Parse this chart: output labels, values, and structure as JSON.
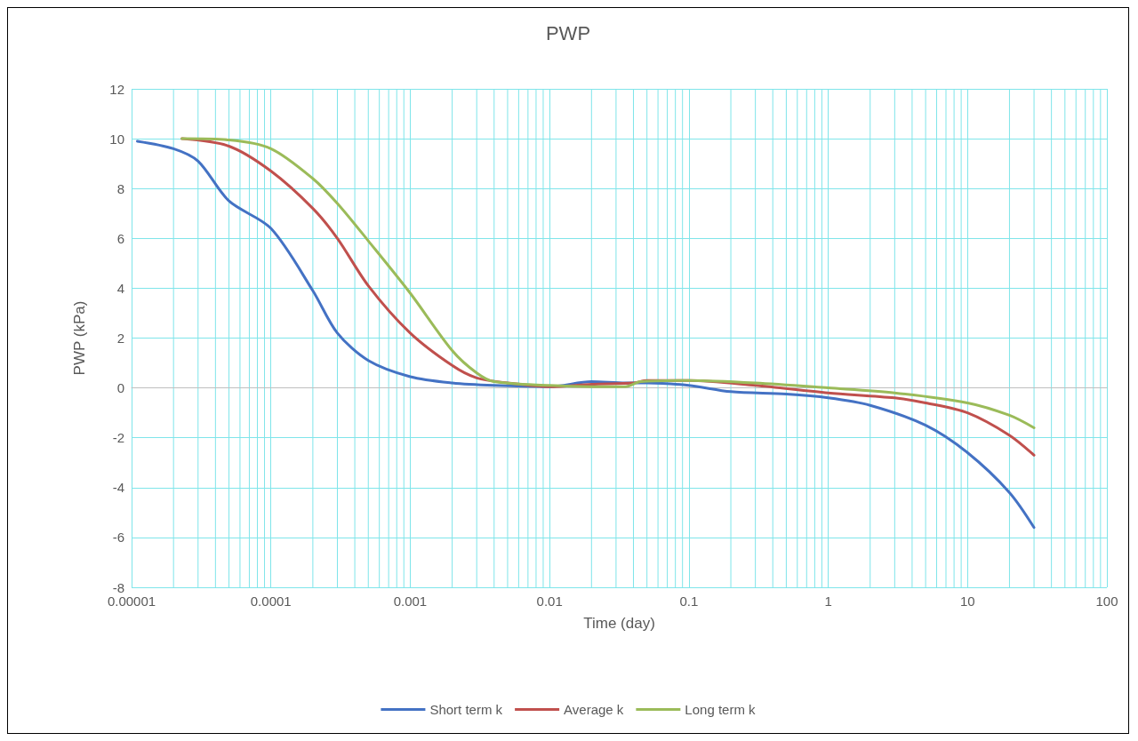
{
  "chart_data": {
    "type": "line",
    "title": "PWP",
    "xlabel": "Time (day)",
    "ylabel": "PWP (kPa)",
    "log": "x",
    "grid": true,
    "legend": "bottom",
    "marker": "none",
    "line_style": "solid",
    "xlim": [
      1e-05,
      100
    ],
    "xticks": [
      {
        "value": 1e-05,
        "label": "0.00001"
      },
      0.0001,
      0.001,
      0.01,
      0.1,
      1,
      10,
      100
    ],
    "ylim": [
      -8,
      12
    ],
    "yticks": [
      -8,
      -6,
      -4,
      -2,
      0,
      2,
      4,
      6,
      8,
      10,
      12
    ],
    "series": [
      {
        "name": "Short term k",
        "color": "#4472c4",
        "x": [
          1.1e-05,
          2e-05,
          3e-05,
          5e-05,
          0.0001,
          0.0002,
          0.0003,
          0.0005,
          0.001,
          0.002,
          0.004,
          0.01,
          0.02,
          0.035,
          0.05,
          0.1,
          0.2,
          0.5,
          1,
          2,
          5,
          10,
          20,
          30
        ],
        "values": [
          9.9,
          9.6,
          9.1,
          7.5,
          6.4,
          3.9,
          2.2,
          1.1,
          0.45,
          0.2,
          0.1,
          0.05,
          0.25,
          0.2,
          0.2,
          0.1,
          -0.15,
          -0.25,
          -0.4,
          -0.7,
          -1.5,
          -2.6,
          -4.2,
          -5.6
        ]
      },
      {
        "name": "Average k",
        "color": "#c0504d",
        "x": [
          2.3e-05,
          5e-05,
          0.0001,
          0.0002,
          0.0003,
          0.0005,
          0.001,
          0.002,
          0.003,
          0.005,
          0.01,
          0.02,
          0.04,
          0.05,
          0.1,
          0.3,
          1,
          3,
          5,
          10,
          20,
          30
        ],
        "values": [
          10.0,
          9.7,
          8.7,
          7.2,
          6.0,
          4.1,
          2.2,
          0.9,
          0.4,
          0.2,
          0.05,
          0.15,
          0.2,
          0.3,
          0.3,
          0.1,
          -0.2,
          -0.4,
          -0.6,
          -1.0,
          -1.9,
          -2.7
        ]
      },
      {
        "name": "Long term k",
        "color": "#9bbb59",
        "x": [
          2.3e-05,
          5e-05,
          0.0001,
          0.0002,
          0.0003,
          0.0005,
          0.001,
          0.002,
          0.003,
          0.004,
          0.01,
          0.02,
          0.035,
          0.045,
          0.1,
          0.3,
          1,
          3,
          10,
          20,
          30
        ],
        "values": [
          10.0,
          9.95,
          9.6,
          8.4,
          7.4,
          5.9,
          3.8,
          1.5,
          0.6,
          0.25,
          0.1,
          0.05,
          0.05,
          0.25,
          0.3,
          0.2,
          0,
          -0.2,
          -0.6,
          -1.1,
          -1.6
        ]
      }
    ]
  }
}
